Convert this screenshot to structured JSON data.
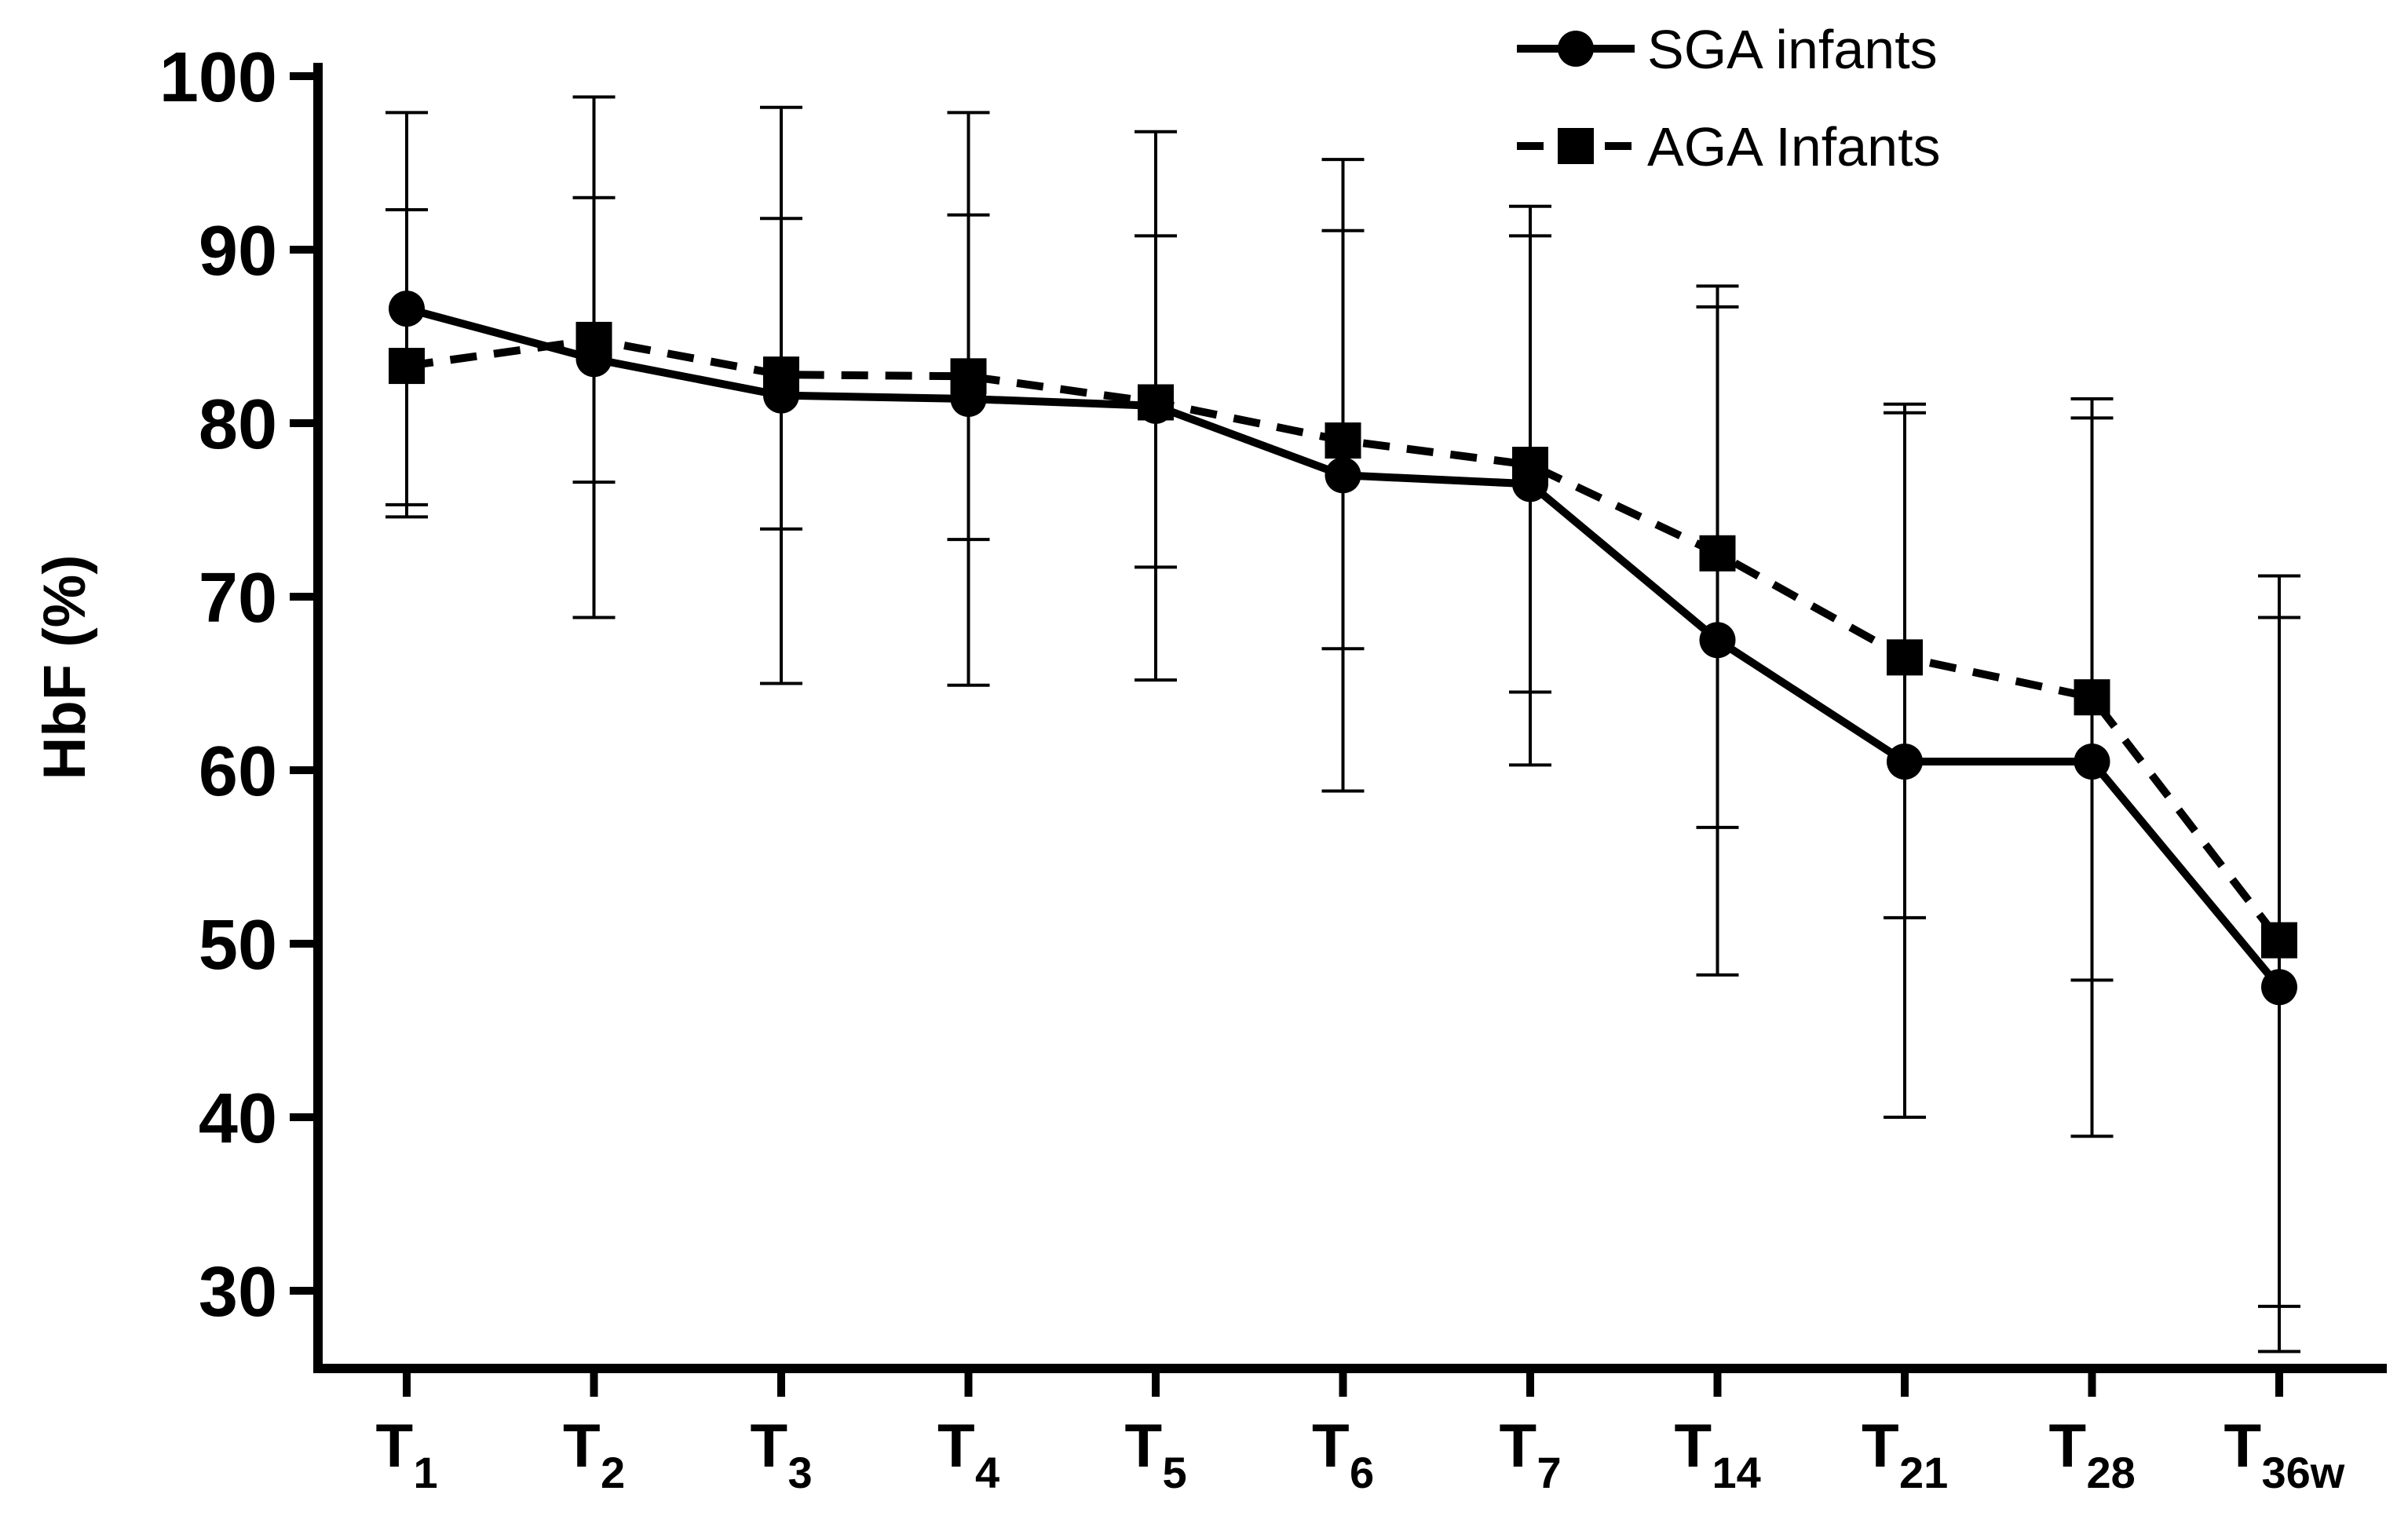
{
  "chart_data": {
    "type": "line",
    "title": "",
    "xlabel": "",
    "ylabel": "HbF (%)",
    "ylim": [
      26,
      100
    ],
    "yticks": [
      30,
      40,
      50,
      60,
      70,
      80,
      90,
      100
    ],
    "grid": false,
    "legend_position": "top-right",
    "categories": [
      {
        "main": "T",
        "sub": "1"
      },
      {
        "main": "T",
        "sub": "2"
      },
      {
        "main": "T",
        "sub": "3"
      },
      {
        "main": "T",
        "sub": "4"
      },
      {
        "main": "T",
        "sub": "5"
      },
      {
        "main": "T",
        "sub": "6"
      },
      {
        "main": "T",
        "sub": "7"
      },
      {
        "main": "T",
        "sub": "14"
      },
      {
        "main": "T",
        "sub": "21"
      },
      {
        "main": "T",
        "sub": "28"
      },
      {
        "main": "T",
        "sub": "36w"
      }
    ],
    "series": [
      {
        "name": "SGA infants",
        "marker": "circle",
        "line_style": "solid",
        "color": "#000000",
        "values": [
          86.6,
          83.7,
          81.6,
          81.4,
          81.0,
          77.0,
          76.5,
          67.5,
          60.5,
          60.5,
          47.5
        ],
        "error_low": [
          74.6,
          68.8,
          65.0,
          64.9,
          65.2,
          58.8,
          60.3,
          48.2,
          40.0,
          38.9,
          26.5
        ],
        "error_high": [
          97.9,
          98.8,
          98.2,
          97.9,
          96.8,
          95.2,
          92.5,
          87.9,
          81.1,
          81.4,
          68.8
        ]
      },
      {
        "name": "AGA Infants",
        "marker": "square",
        "line_style": "dashed",
        "color": "#000000",
        "values": [
          83.3,
          84.8,
          82.8,
          82.7,
          81.2,
          79.0,
          77.6,
          72.5,
          66.5,
          64.2,
          50.2
        ],
        "error_low": [
          75.3,
          76.6,
          73.9,
          73.3,
          71.7,
          67.0,
          64.5,
          56.7,
          51.5,
          47.9,
          29.1
        ],
        "error_high": [
          92.3,
          93.0,
          91.8,
          92.0,
          90.8,
          91.1,
          90.8,
          86.7,
          80.6,
          80.3,
          71.2
        ]
      }
    ]
  }
}
